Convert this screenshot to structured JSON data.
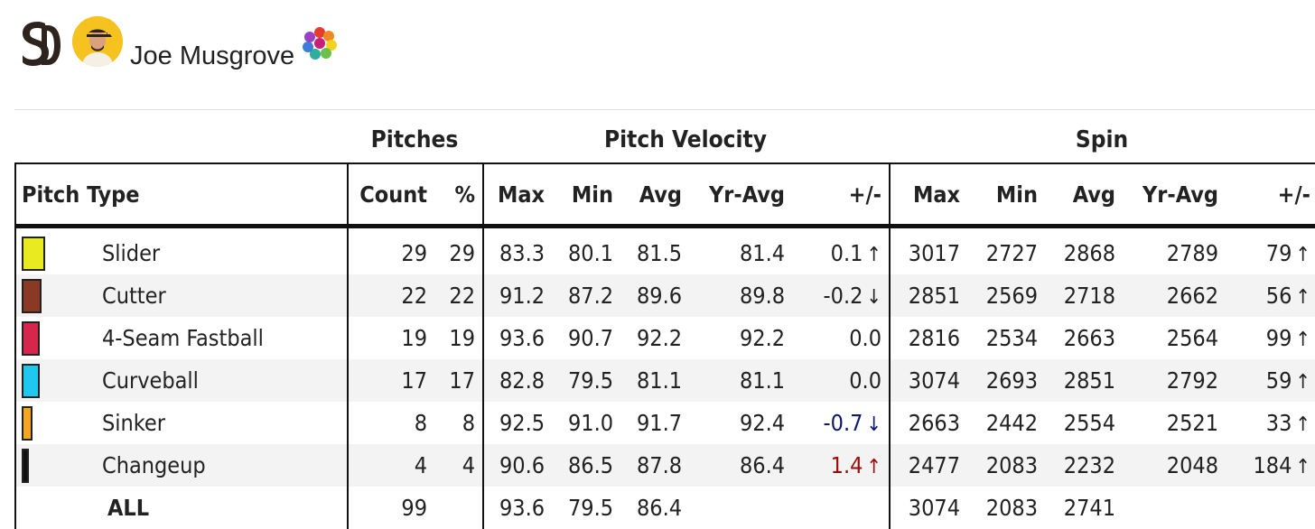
{
  "player": {
    "name": "Joe Musgrove",
    "team_logo_icon": "sd-padres-logo-icon",
    "avatar_icon": "player-headshot-icon",
    "badge_icon": "colorful-flower-badge-icon"
  },
  "groups": {
    "pitches": "Pitches",
    "velocity": "Pitch Velocity",
    "spin": "Spin"
  },
  "columns": [
    "Pitch Type",
    "Count",
    "%",
    "Max",
    "Min",
    "Avg",
    "Yr-Avg",
    "+/-",
    "Max",
    "Min",
    "Avg",
    "Yr-Avg",
    "+/-"
  ],
  "rows": [
    {
      "color": "#eaea20",
      "swatch_width": 22,
      "name": "Slider",
      "count": "29",
      "pct": "29",
      "v_max": "83.3",
      "v_min": "80.1",
      "v_avg": "81.5",
      "v_yr": "81.4",
      "v_diff": "0.1",
      "v_arrow": "↑",
      "v_style": "normal",
      "s_max": "3017",
      "s_min": "2727",
      "s_avg": "2868",
      "s_yr": "2789",
      "s_diff": "79",
      "s_arrow": "↑"
    },
    {
      "color": "#8a3a24",
      "swatch_width": 18,
      "name": "Cutter",
      "count": "22",
      "pct": "22",
      "v_max": "91.2",
      "v_min": "87.2",
      "v_avg": "89.6",
      "v_yr": "89.8",
      "v_diff": "-0.2",
      "v_arrow": "↓",
      "v_style": "normal",
      "s_max": "2851",
      "s_min": "2569",
      "s_avg": "2718",
      "s_yr": "2662",
      "s_diff": "56",
      "s_arrow": "↑"
    },
    {
      "color": "#d6264c",
      "swatch_width": 16,
      "name": "4-Seam Fastball",
      "count": "19",
      "pct": "19",
      "v_max": "93.6",
      "v_min": "90.7",
      "v_avg": "92.2",
      "v_yr": "92.2",
      "v_diff": "0.0",
      "v_arrow": "",
      "v_style": "normal",
      "s_max": "2816",
      "s_min": "2534",
      "s_avg": "2663",
      "s_yr": "2564",
      "s_diff": "99",
      "s_arrow": "↑"
    },
    {
      "color": "#1fc8ee",
      "swatch_width": 16,
      "name": "Curveball",
      "count": "17",
      "pct": "17",
      "v_max": "82.8",
      "v_min": "79.5",
      "v_avg": "81.1",
      "v_yr": "81.1",
      "v_diff": "0.0",
      "v_arrow": "",
      "v_style": "normal",
      "s_max": "3074",
      "s_min": "2693",
      "s_avg": "2851",
      "s_yr": "2792",
      "s_diff": "59",
      "s_arrow": "↑"
    },
    {
      "color": "#f5a623",
      "swatch_width": 8,
      "name": "Sinker",
      "count": "8",
      "pct": "8",
      "v_max": "92.5",
      "v_min": "91.0",
      "v_avg": "91.7",
      "v_yr": "92.4",
      "v_diff": "-0.7",
      "v_arrow": "↓",
      "v_style": "down-blue",
      "s_max": "2663",
      "s_min": "2442",
      "s_avg": "2554",
      "s_yr": "2521",
      "s_diff": "33",
      "s_arrow": "↑"
    },
    {
      "color": "#111111",
      "swatch_width": 4,
      "name": "Changeup",
      "count": "4",
      "pct": "4",
      "v_max": "90.6",
      "v_min": "86.5",
      "v_avg": "87.8",
      "v_yr": "86.4",
      "v_diff": "1.4",
      "v_arrow": "↑",
      "v_style": "up-red",
      "s_max": "2477",
      "s_min": "2083",
      "s_avg": "2232",
      "s_yr": "2048",
      "s_diff": "184",
      "s_arrow": "↑"
    }
  ],
  "totals": {
    "label": "ALL",
    "count": "99",
    "v_max": "93.6",
    "v_min": "79.5",
    "v_avg": "86.4",
    "s_max": "3074",
    "s_min": "2083",
    "s_avg": "2741"
  }
}
